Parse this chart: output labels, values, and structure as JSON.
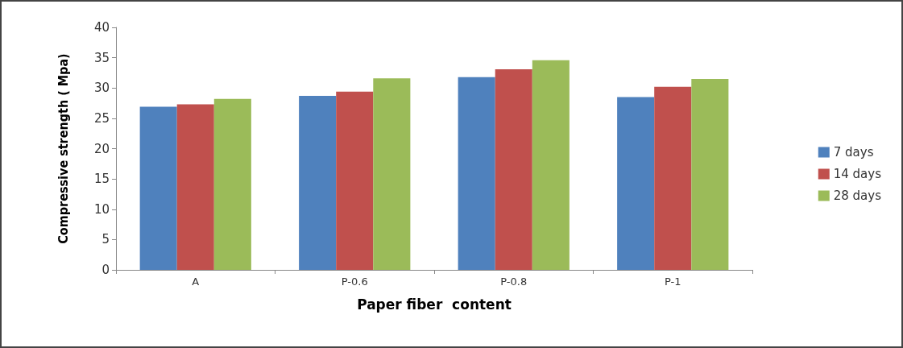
{
  "chart_data": {
    "type": "bar",
    "xlabel": "Paper fiber  content",
    "ylabel": "Compressive strength ( Mpa)",
    "categories": [
      "A",
      "P-0.6",
      "P-0.8",
      "P-1"
    ],
    "series": [
      {
        "name": "7 days",
        "color": "#4f81bd",
        "values": [
          26.9,
          28.7,
          31.8,
          28.5
        ]
      },
      {
        "name": "14 days",
        "color": "#c0504d",
        "values": [
          27.3,
          29.4,
          33.1,
          30.2
        ]
      },
      {
        "name": "28 days",
        "color": "#9bbb59",
        "values": [
          28.2,
          31.6,
          34.6,
          31.5
        ]
      }
    ],
    "ylim": [
      0,
      40
    ],
    "yticks": [
      0,
      5,
      10,
      15,
      20,
      25,
      30,
      35,
      40
    ],
    "grid": false,
    "legend": "right"
  }
}
